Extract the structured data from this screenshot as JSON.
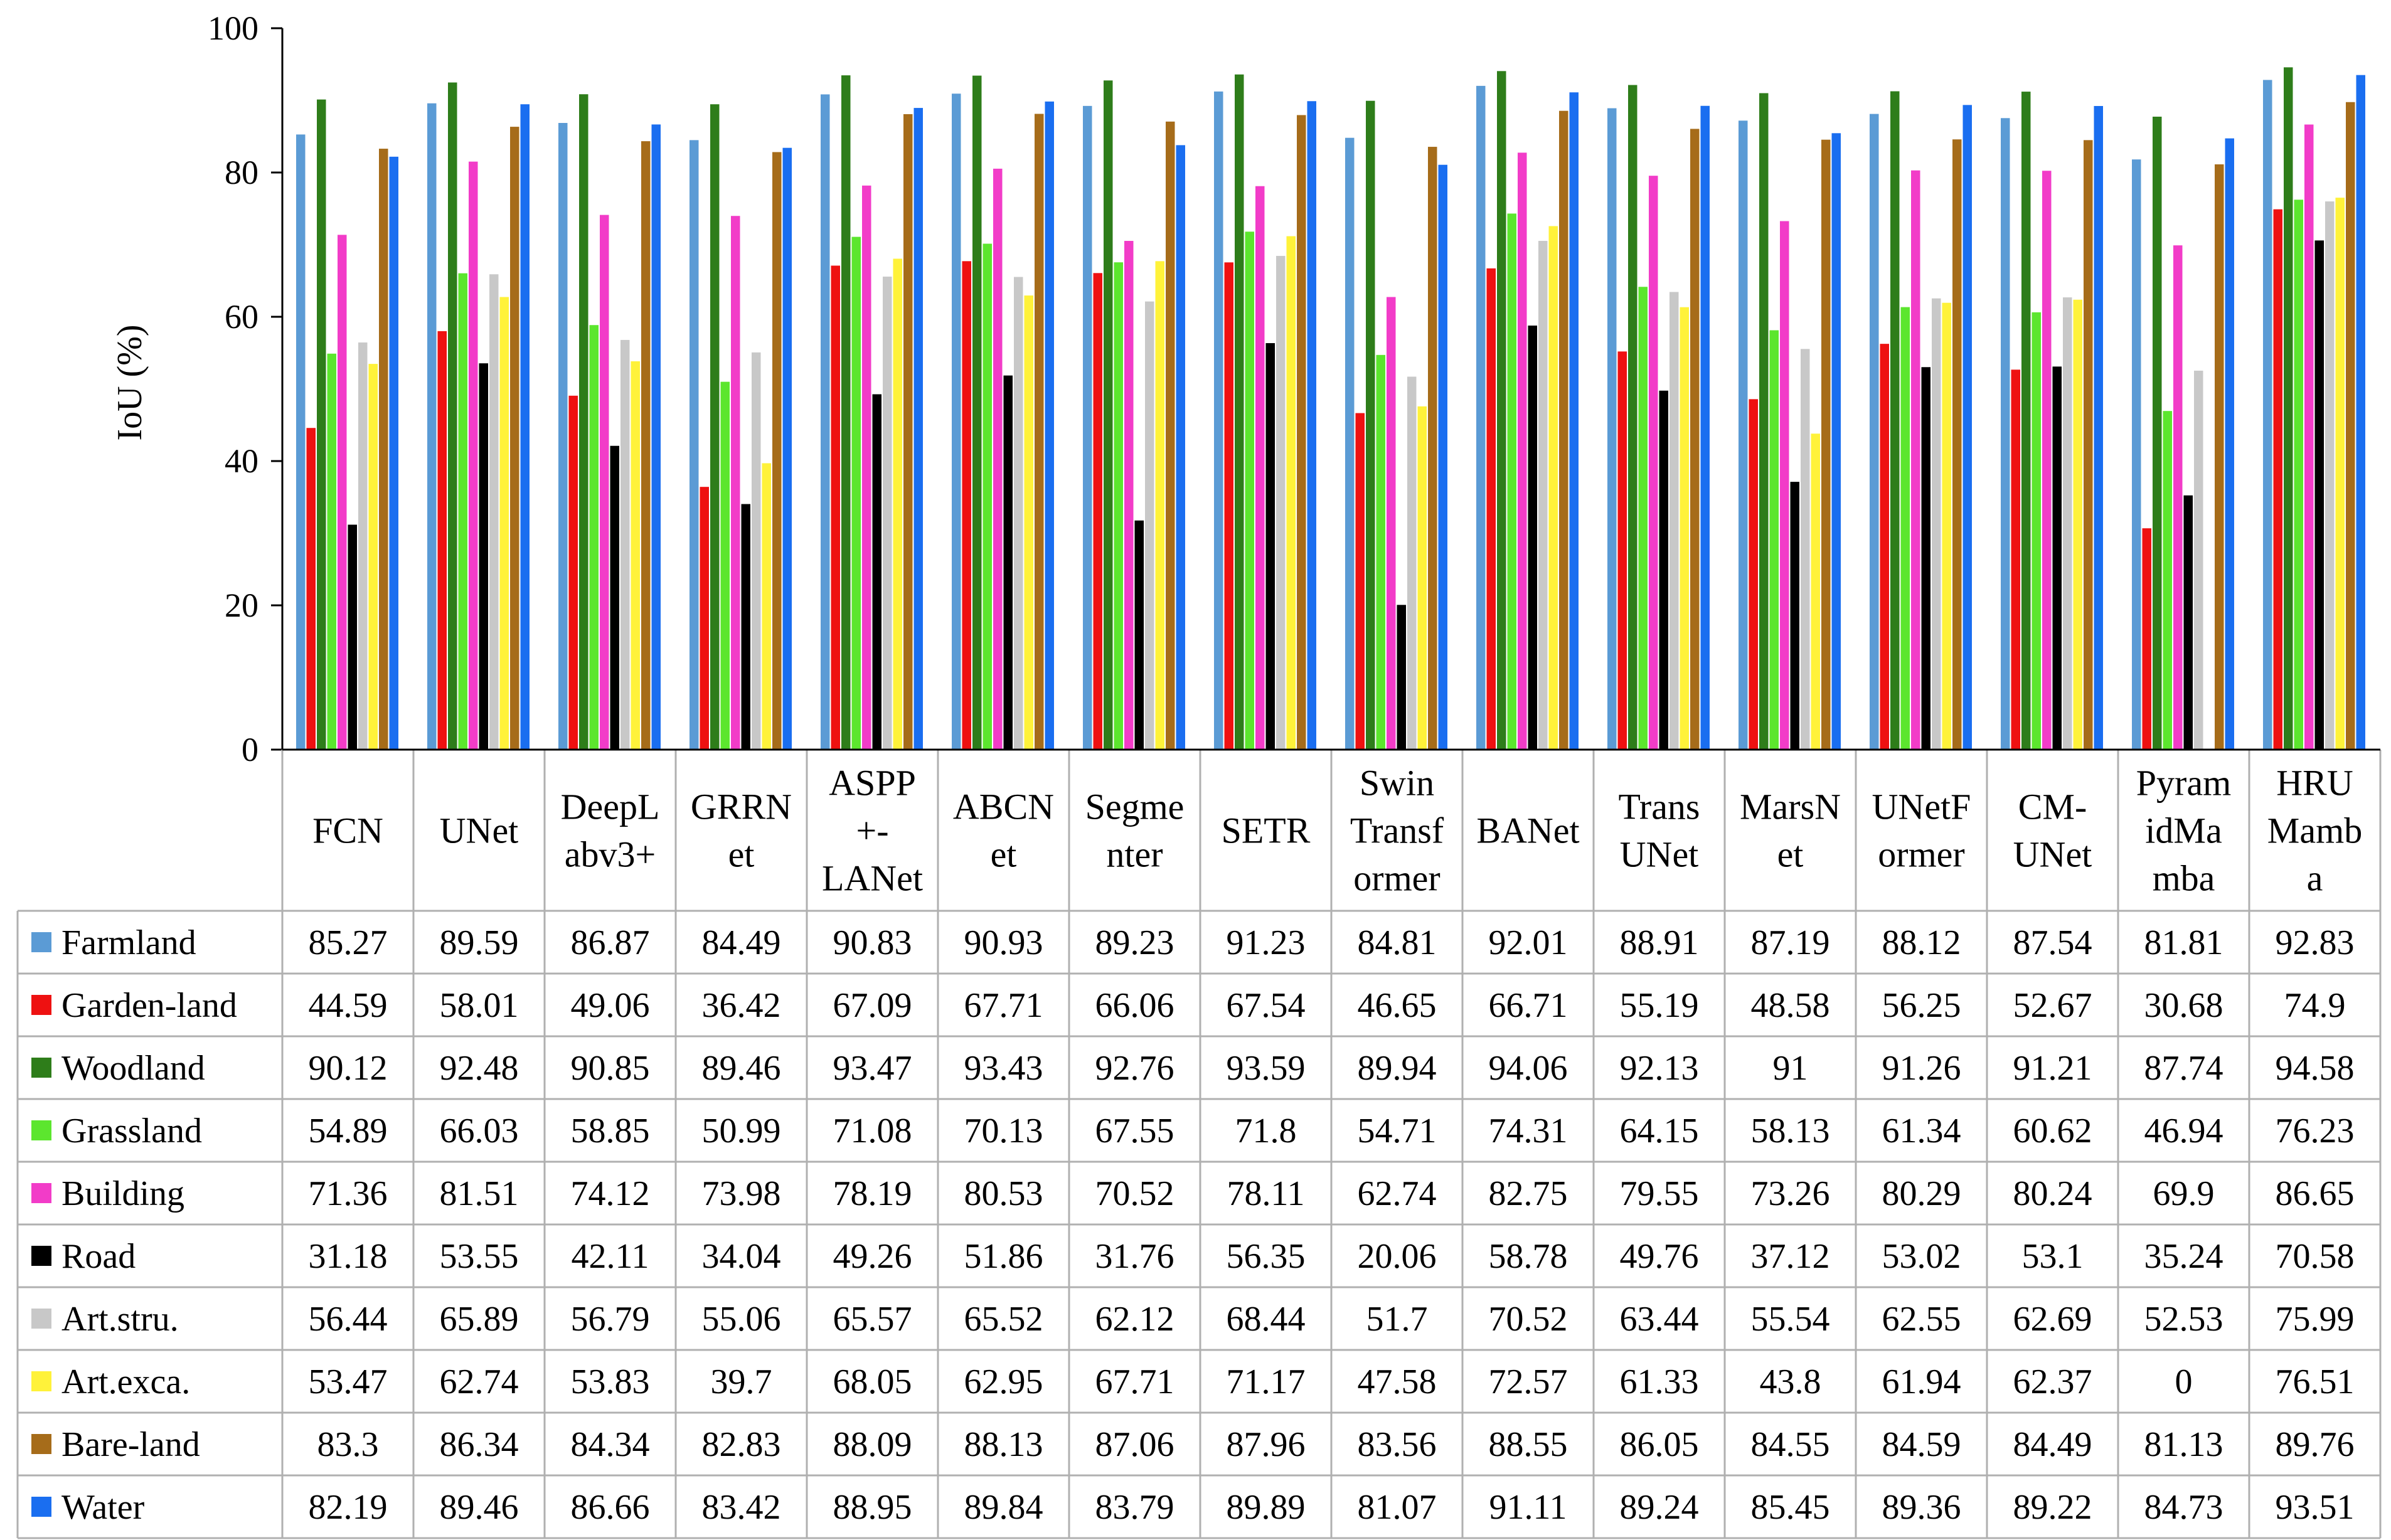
{
  "chart_data": {
    "type": "bar",
    "ylabel": "IoU (%)",
    "ylim": [
      0,
      100
    ],
    "yticks": [
      "0",
      "20",
      "40",
      "60",
      "80",
      "100"
    ],
    "grid": false,
    "legend": "data table below chart",
    "categories": [
      "FCN",
      "UNet",
      "DeepLabv3+",
      "GRRNet",
      "ASPP+-LANet",
      "ABCNet",
      "Segmenter",
      "SETR",
      "SwinTransformer",
      "BANet",
      "TransUNet",
      "MarsNet",
      "UNetFormer",
      "CM-UNet",
      "PyramidMamba",
      "HRUMamba"
    ],
    "category_lines": [
      [
        "FCN"
      ],
      [
        "UNet"
      ],
      [
        "DeepL",
        "abv3+"
      ],
      [
        "GRRN",
        "et"
      ],
      [
        "ASPP",
        "+-",
        "LANet"
      ],
      [
        "ABCN",
        "et"
      ],
      [
        "Segme",
        "nter"
      ],
      [
        "SETR"
      ],
      [
        "Swin",
        "Transf",
        "ormer"
      ],
      [
        "BANet"
      ],
      [
        "Trans",
        "UNet"
      ],
      [
        "MarsN",
        "et"
      ],
      [
        "UNetF",
        "ormer"
      ],
      [
        "CM-",
        "UNet"
      ],
      [
        "Pyram",
        "idMa",
        "mba"
      ],
      [
        "HRU",
        "Mamb",
        "a"
      ]
    ],
    "series": [
      {
        "name": "Farmland",
        "color": "#5B9BD5",
        "values": [
          85.27,
          89.59,
          86.87,
          84.49,
          90.83,
          90.93,
          89.23,
          91.23,
          84.81,
          92.01,
          88.91,
          87.19,
          88.12,
          87.54,
          81.81,
          92.83
        ],
        "labels": [
          "85.27",
          "89.59",
          "86.87",
          "84.49",
          "90.83",
          "90.93",
          "89.23",
          "91.23",
          "84.81",
          "92.01",
          "88.91",
          "87.19",
          "88.12",
          "87.54",
          "81.81",
          "92.83"
        ]
      },
      {
        "name": "Garden-land",
        "color": "#EE1111",
        "values": [
          44.59,
          58.01,
          49.06,
          36.42,
          67.09,
          67.71,
          66.06,
          67.54,
          46.65,
          66.71,
          55.19,
          48.58,
          56.25,
          52.67,
          30.68,
          74.9
        ],
        "labels": [
          "44.59",
          "58.01",
          "49.06",
          "36.42",
          "67.09",
          "67.71",
          "66.06",
          "67.54",
          "46.65",
          "66.71",
          "55.19",
          "48.58",
          "56.25",
          "52.67",
          "30.68",
          "74.9"
        ]
      },
      {
        "name": "Woodland",
        "color": "#2E7D1A",
        "values": [
          90.12,
          92.48,
          90.85,
          89.46,
          93.47,
          93.43,
          92.76,
          93.59,
          89.94,
          94.06,
          92.13,
          91,
          91.26,
          91.21,
          87.74,
          94.58
        ],
        "labels": [
          "90.12",
          "92.48",
          "90.85",
          "89.46",
          "93.47",
          "93.43",
          "92.76",
          "93.59",
          "89.94",
          "94.06",
          "92.13",
          "91",
          "91.26",
          "91.21",
          "87.74",
          "94.58"
        ]
      },
      {
        "name": "Grassland",
        "color": "#5CE62E",
        "values": [
          54.89,
          66.03,
          58.85,
          50.99,
          71.08,
          70.13,
          67.55,
          71.8,
          54.71,
          74.31,
          64.15,
          58.13,
          61.34,
          60.62,
          46.94,
          76.23
        ],
        "labels": [
          "54.89",
          "66.03",
          "58.85",
          "50.99",
          "71.08",
          "70.13",
          "67.55",
          "71.8",
          "54.71",
          "74.31",
          "64.15",
          "58.13",
          "61.34",
          "60.62",
          "46.94",
          "76.23"
        ]
      },
      {
        "name": "Building",
        "color": "#F23CC8",
        "values": [
          71.36,
          81.51,
          74.12,
          73.98,
          78.19,
          80.53,
          70.52,
          78.11,
          62.74,
          82.75,
          79.55,
          73.26,
          80.29,
          80.24,
          69.9,
          86.65
        ],
        "labels": [
          "71.36",
          "81.51",
          "74.12",
          "73.98",
          "78.19",
          "80.53",
          "70.52",
          "78.11",
          "62.74",
          "82.75",
          "79.55",
          "73.26",
          "80.29",
          "80.24",
          "69.9",
          "86.65"
        ]
      },
      {
        "name": "Road",
        "color": "#000000",
        "values": [
          31.18,
          53.55,
          42.11,
          34.04,
          49.26,
          51.86,
          31.76,
          56.35,
          20.06,
          58.78,
          49.76,
          37.12,
          53.02,
          53.1,
          35.24,
          70.58
        ],
        "labels": [
          "31.18",
          "53.55",
          "42.11",
          "34.04",
          "49.26",
          "51.86",
          "31.76",
          "56.35",
          "20.06",
          "58.78",
          "49.76",
          "37.12",
          "53.02",
          "53.1",
          "35.24",
          "70.58"
        ]
      },
      {
        "name": "Art.stru.",
        "color": "#C8C8C8",
        "values": [
          56.44,
          65.89,
          56.79,
          55.06,
          65.57,
          65.52,
          62.12,
          68.44,
          51.7,
          70.52,
          63.44,
          55.54,
          62.55,
          62.69,
          52.53,
          75.99
        ],
        "labels": [
          "56.44",
          "65.89",
          "56.79",
          "55.06",
          "65.57",
          "65.52",
          "62.12",
          "68.44",
          "51.7",
          "70.52",
          "63.44",
          "55.54",
          "62.55",
          "62.69",
          "52.53",
          "75.99"
        ]
      },
      {
        "name": "Art.exca.",
        "color": "#FFF23A",
        "values": [
          53.47,
          62.74,
          53.83,
          39.7,
          68.05,
          62.95,
          67.71,
          71.17,
          47.58,
          72.57,
          61.33,
          43.8,
          61.94,
          62.37,
          0,
          76.51
        ],
        "labels": [
          "53.47",
          "62.74",
          "53.83",
          "39.7",
          "68.05",
          "62.95",
          "67.71",
          "71.17",
          "47.58",
          "72.57",
          "61.33",
          "43.8",
          "61.94",
          "62.37",
          "0",
          "76.51"
        ]
      },
      {
        "name": "Bare-land",
        "color": "#A66C1A",
        "values": [
          83.3,
          86.34,
          84.34,
          82.83,
          88.09,
          88.13,
          87.06,
          87.96,
          83.56,
          88.55,
          86.05,
          84.55,
          84.59,
          84.49,
          81.13,
          89.76
        ],
        "labels": [
          "83.3",
          "86.34",
          "84.34",
          "82.83",
          "88.09",
          "88.13",
          "87.06",
          "87.96",
          "83.56",
          "88.55",
          "86.05",
          "84.55",
          "84.59",
          "84.49",
          "81.13",
          "89.76"
        ]
      },
      {
        "name": "Water",
        "color": "#1A6EF0",
        "values": [
          82.19,
          89.46,
          86.66,
          83.42,
          88.95,
          89.84,
          83.79,
          89.89,
          81.07,
          91.11,
          89.24,
          85.45,
          89.36,
          89.22,
          84.73,
          93.51
        ],
        "labels": [
          "82.19",
          "89.46",
          "86.66",
          "83.42",
          "88.95",
          "89.84",
          "83.79",
          "89.89",
          "81.07",
          "91.11",
          "89.24",
          "85.45",
          "89.36",
          "89.22",
          "84.73",
          "93.51"
        ]
      }
    ]
  }
}
